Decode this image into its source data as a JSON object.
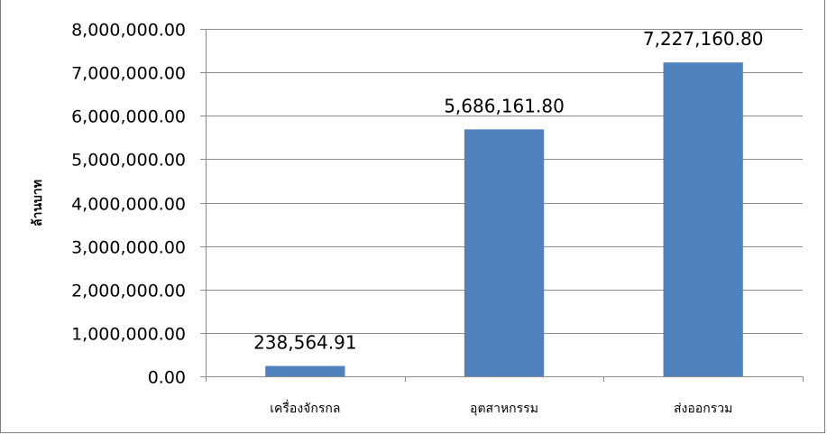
{
  "chart_data": {
    "type": "bar",
    "title": "",
    "xlabel": "",
    "ylabel": "ล้านบาท",
    "categories": [
      "เครื่องจักรกล",
      "อุตสาหกรรม",
      "ส่งออกรวม"
    ],
    "values": [
      238564.91,
      5686161.8,
      7227160.8
    ],
    "value_labels": [
      "238,564.91",
      "5,686,161.80",
      "7,227,160.80"
    ],
    "ylim": [
      0,
      8000000
    ],
    "y_ticks": [
      0,
      1000000,
      2000000,
      3000000,
      4000000,
      5000000,
      6000000,
      7000000,
      8000000
    ],
    "y_tick_labels": [
      "0.00",
      "1,000,000.00",
      "2,000,000.00",
      "3,000,000.00",
      "4,000,000.00",
      "5,000,000.00",
      "6,000,000.00",
      "7,000,000.00",
      "8,000,000.00"
    ],
    "grid": true,
    "legend": "none",
    "colors": {
      "bar": "#4f81bd",
      "grid": "#8c8c8c",
      "axis": "#8c8c8c"
    }
  }
}
